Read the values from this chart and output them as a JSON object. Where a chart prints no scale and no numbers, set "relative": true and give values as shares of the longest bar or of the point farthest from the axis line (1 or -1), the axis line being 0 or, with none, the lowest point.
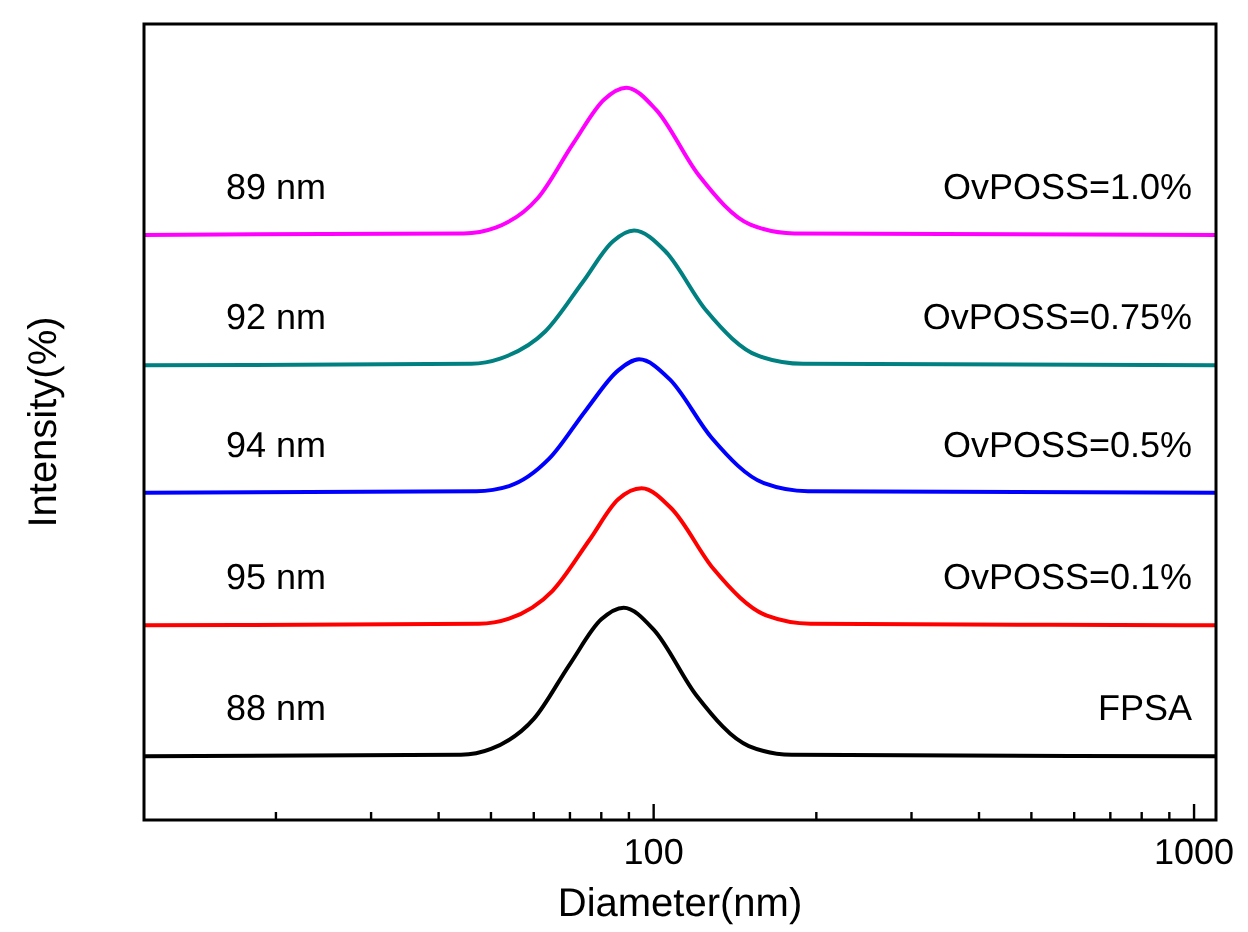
{
  "chart_data": {
    "type": "line",
    "xlabel": "Diameter(nm)",
    "ylabel": "Intensity(%)",
    "relative": true,
    "log": "x",
    "grid": false,
    "tick_labels": "x",
    "line_style": "solid",
    "xlim": [
      11.4,
      1098
    ],
    "xticks": [
      {
        "value": 20,
        "label": null
      },
      {
        "value": 30,
        "label": null
      },
      {
        "value": 40,
        "label": null
      },
      {
        "value": 50,
        "label": null
      },
      {
        "value": 60,
        "label": null
      },
      {
        "value": 70,
        "label": null
      },
      {
        "value": 80,
        "label": null
      },
      {
        "value": 90,
        "label": null
      },
      100,
      {
        "value": 200,
        "label": null
      },
      {
        "value": 300,
        "label": null
      },
      {
        "value": 400,
        "label": null
      },
      {
        "value": 500,
        "label": null
      },
      {
        "value": 600,
        "label": null
      },
      {
        "value": 700,
        "label": null
      },
      {
        "value": 800,
        "label": null
      },
      {
        "value": 900,
        "label": null
      },
      1000
    ],
    "series": [
      {
        "name": "FPSA",
        "color": "#000000",
        "x": [
          11.4,
          44,
          50,
          60,
          70,
          80,
          88,
          100,
          120,
          150,
          180,
          1098
        ],
        "values": [
          0.087,
          0.089,
          0.097,
          0.138,
          0.213,
          0.274,
          0.29,
          0.26,
          0.17,
          0.101,
          0.089,
          0.087
        ]
      },
      {
        "name": "OvPOSS=0.1%",
        "color": "#ff0000",
        "x": [
          11.4,
          47.5,
          54,
          65,
          76,
          86,
          95,
          108,
          129,
          162,
          195,
          1098
        ],
        "values": [
          0.266,
          0.268,
          0.275,
          0.313,
          0.382,
          0.438,
          0.453,
          0.425,
          0.343,
          0.279,
          0.268,
          0.266
        ]
      },
      {
        "name": "OvPOSS=0.5%",
        "color": "#0000ff",
        "x": [
          11.4,
          47,
          54,
          64,
          75,
          86,
          94,
          107,
          128,
          160,
          193,
          1098
        ],
        "values": [
          0.447,
          0.449,
          0.456,
          0.493,
          0.56,
          0.614,
          0.629,
          0.602,
          0.522,
          0.46,
          0.449,
          0.447
        ]
      },
      {
        "name": "OvPOSS=0.75%",
        "color": "#008080",
        "x": [
          11.4,
          46,
          52,
          63,
          74,
          84,
          92,
          105,
          125,
          156,
          189,
          1098
        ],
        "values": [
          0.621,
          0.623,
          0.63,
          0.667,
          0.735,
          0.79,
          0.805,
          0.777,
          0.696,
          0.634,
          0.623,
          0.621
        ]
      },
      {
        "name": "OvPOSS=1.0%",
        "color": "#ff00ff",
        "x": [
          11.4,
          44.5,
          51,
          61,
          71,
          81,
          89,
          101,
          121,
          151,
          182,
          1098
        ],
        "values": [
          0.799,
          0.801,
          0.809,
          0.849,
          0.924,
          0.984,
          1,
          0.97,
          0.881,
          0.813,
          0.801,
          0.799
        ]
      }
    ],
    "annotations": [
      "88 nm",
      "95 nm",
      "94 nm",
      "92 nm",
      "89 nm"
    ]
  }
}
